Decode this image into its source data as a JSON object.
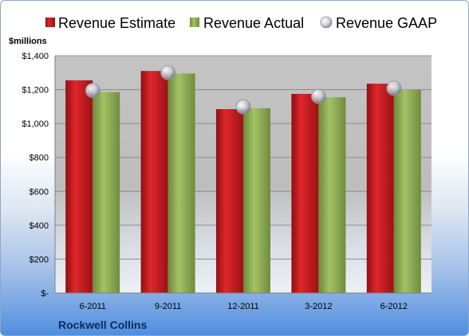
{
  "chart_data": {
    "type": "bar",
    "unit_label": "$millions",
    "company": "Rockwell Collins",
    "categories": [
      "6-2011",
      "9-2011",
      "12-2011",
      "3-2012",
      "6-2012"
    ],
    "series": [
      {
        "name": "Revenue Estimate",
        "kind": "bar",
        "color": "#c0171c",
        "values": [
          1255,
          1310,
          1085,
          1175,
          1235
        ]
      },
      {
        "name": "Revenue Actual",
        "kind": "bar",
        "color": "#8fae55",
        "values": [
          1185,
          1295,
          1090,
          1155,
          1200
        ]
      },
      {
        "name": "Revenue GAAP",
        "kind": "marker",
        "color": "#c8ccd6",
        "values": [
          1195,
          1300,
          1098,
          1160,
          1208
        ]
      }
    ],
    "y_ticks": [
      {
        "value": 0,
        "label": "$-"
      },
      {
        "value": 200,
        "label": "$200"
      },
      {
        "value": 400,
        "label": "$400"
      },
      {
        "value": 600,
        "label": "$600"
      },
      {
        "value": 800,
        "label": "$800"
      },
      {
        "value": 1000,
        "label": "$1,000"
      },
      {
        "value": 1200,
        "label": "$1,200"
      },
      {
        "value": 1400,
        "label": "$1,400"
      }
    ],
    "ylim": [
      0,
      1400
    ],
    "grid": true,
    "legend_position": "top"
  }
}
